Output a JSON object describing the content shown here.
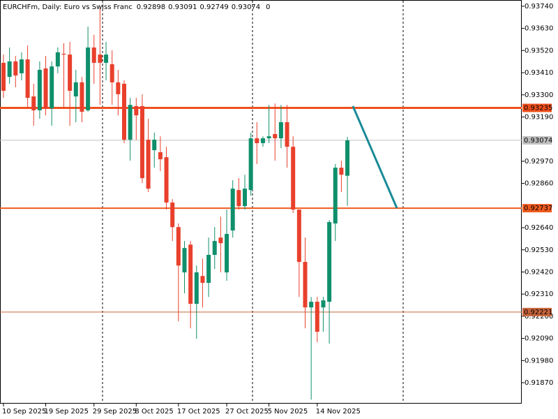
{
  "chart_data": {
    "type": "candlestick",
    "title": "EURCHFm, Daily:  Euro vs Swiss Franc",
    "spread": 0,
    "up_color": "#0f8f6b",
    "down_color": "#e8402c",
    "categories": [
      "10 Sep 2025",
      null,
      null,
      null,
      null,
      null,
      null,
      "19 Sep 2025",
      null,
      null,
      null,
      null,
      null,
      null,
      null,
      "29 Sep 2025",
      null,
      null,
      null,
      null,
      null,
      null,
      "8 Oct 2025",
      null,
      null,
      null,
      null,
      null,
      null,
      "17 Oct 2025",
      null,
      null,
      null,
      null,
      null,
      null,
      null,
      "27 Oct 2025",
      null,
      null,
      null,
      null,
      null,
      null,
      "5 Nov 2025",
      null,
      null,
      null,
      null,
      null,
      null,
      null,
      "14 Nov 2025",
      null,
      null,
      null,
      null,
      null
    ],
    "open": [
      0.93459,
      0.93389,
      0.93466,
      0.93407,
      0.93476,
      0.93292,
      0.93223,
      0.93431,
      0.93233,
      0.93441,
      0.93504,
      0.935,
      0.93292,
      0.93362,
      0.93223,
      0.93535,
      0.935,
      0.93459,
      0.93452,
      0.93362,
      0.93355,
      0.93077,
      0.93244,
      0.93244,
      0.93077,
      0.93025,
      0.93015,
      0.9299,
      0.92765,
      0.92643,
      0.92418,
      0.92556,
      0.92262,
      0.924,
      0.92366,
      0.92505,
      0.92591,
      0.92418,
      0.92626,
      0.92827,
      0.92747,
      0.92827,
      0.93084,
      0.9306,
      0.93084,
      0.93105,
      0.93084,
      0.93164,
      0.93042,
      0.9273,
      0.9247,
      0.92244,
      0.92272,
      0.92244,
      0.92272,
      0.92661,
      0.92938,
      0.92898
    ],
    "high": [
      0.935,
      0.93535,
      0.93493,
      0.93511,
      0.93545,
      0.93355,
      0.93466,
      0.93493,
      0.93466,
      0.93535,
      0.93556,
      0.93563,
      0.93424,
      0.93389,
      0.93639,
      0.93598,
      0.93729,
      0.93563,
      0.93521,
      0.93424,
      0.93372,
      0.93285,
      0.93285,
      0.93303,
      0.93181,
      0.93112,
      0.93094,
      0.93042,
      0.92782,
      0.92661,
      0.92574,
      0.92574,
      0.92452,
      0.92487,
      0.92591,
      0.92643,
      0.92695,
      0.9273,
      0.92876,
      0.92886,
      0.92903,
      0.93112,
      0.93164,
      0.93094,
      0.9325,
      0.93257,
      0.9325,
      0.9325,
      0.93094,
      0.9273,
      0.92591,
      0.92296,
      0.92296,
      0.92296,
      0.92678,
      0.92956,
      0.92973,
      0.93091
    ],
    "low": [
      0.93285,
      0.93355,
      0.93337,
      0.93372,
      0.93233,
      0.93146,
      0.93181,
      0.93198,
      0.93146,
      0.93407,
      0.93233,
      0.93146,
      0.93164,
      0.93164,
      0.93216,
      0.93355,
      0.9325,
      0.93372,
      0.9325,
      0.93198,
      0.9306,
      0.92973,
      0.93077,
      0.92862,
      0.92817,
      0.92938,
      0.92921,
      0.9273,
      0.92574,
      0.92175,
      0.92314,
      0.9214,
      0.92088,
      0.92244,
      0.92296,
      0.92435,
      0.92418,
      0.92376,
      0.92591,
      0.9273,
      0.9273,
      0.92799,
      0.92956,
      0.93042,
      0.9306,
      0.92973,
      0.93035,
      0.92938,
      0.92713,
      0.92296,
      0.9214,
      0.91786,
      0.92071,
      0.92123,
      0.92064,
      0.92574,
      0.92817,
      0.92749
    ],
    "close": [
      0.9332,
      0.93466,
      0.93396,
      0.93476,
      0.93285,
      0.93223,
      0.93424,
      0.93233,
      0.93441,
      0.93511,
      0.935,
      0.9332,
      0.93362,
      0.93216,
      0.93535,
      0.93459,
      0.93459,
      0.935,
      0.93362,
      0.93303,
      0.93077,
      0.9325,
      0.93198,
      0.92886,
      0.92834,
      0.93077,
      0.9298,
      0.92765,
      0.92643,
      0.92452,
      0.92539,
      0.92262,
      0.92418,
      0.92366,
      0.92505,
      0.92574,
      0.92563,
      0.92609,
      0.92834,
      0.92747,
      0.92834,
      0.93084,
      0.9306,
      0.93084,
      0.93094,
      0.93084,
      0.93164,
      0.93042,
      0.9273,
      0.9247,
      0.92244,
      0.92272,
      0.92123,
      0.92279,
      0.92668,
      0.92938,
      0.92903,
      0.93074
    ],
    "ylim": [
      0.91766,
      0.93771
    ],
    "yticks": [
      {
        "value": 0.9374,
        "label": "0.93740"
      },
      {
        "value": 0.9363,
        "label": "0.93630"
      },
      {
        "value": 0.9352,
        "label": "0.93520"
      },
      {
        "value": 0.9341,
        "label": "0.93410"
      },
      {
        "value": 0.933,
        "label": "0.93300"
      },
      {
        "value": 0.9319,
        "label": "0.93190"
      },
      {
        "value": 0.9297,
        "label": "0.92970"
      },
      {
        "value": 0.9286,
        "label": "0.92860"
      },
      {
        "value": 0.9264,
        "label": "0.92640"
      },
      {
        "value": 0.9253,
        "label": "0.92530"
      },
      {
        "value": 0.9242,
        "label": "0.92420"
      },
      {
        "value": 0.9231,
        "label": "0.92310"
      },
      {
        "value": 0.922,
        "label": "0.92200"
      },
      {
        "value": 0.9209,
        "label": "0.92090"
      },
      {
        "value": 0.9198,
        "label": "0.91980"
      },
      {
        "value": 0.9187,
        "label": "0.91870"
      }
    ],
    "levels": [
      {
        "value": 0.93074,
        "color": "#c0c0c0",
        "width": 1
      },
      {
        "value": 0.92221,
        "color": "#c8643c",
        "width": 1
      },
      {
        "value": 0.92737,
        "color": "#f05a1e",
        "width": 2
      },
      {
        "value": 0.93235,
        "color": "#f0501e",
        "width": 3
      }
    ]
  }
}
